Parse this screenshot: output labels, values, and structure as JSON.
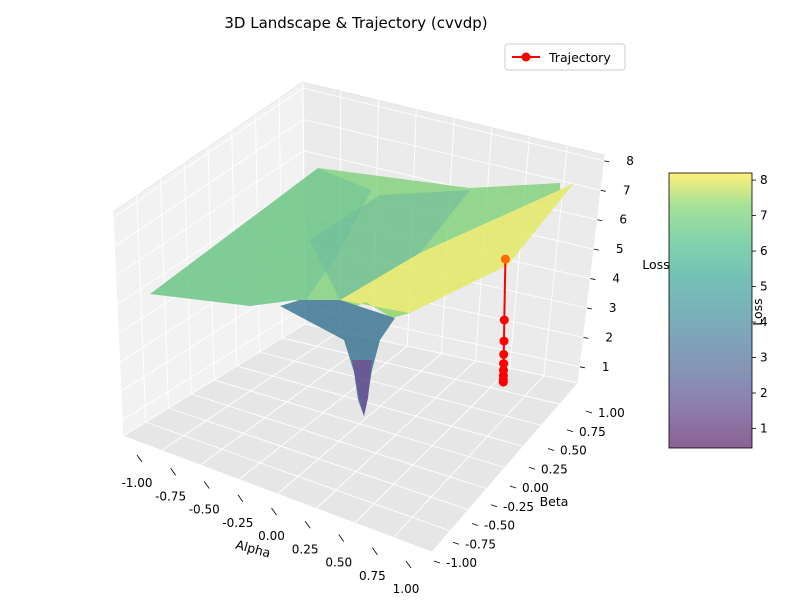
{
  "chart_data": {
    "type": "surface3d",
    "title": "3D Landscape & Trajectory (cvvdp)",
    "xlabel": "Alpha",
    "ylabel": "Beta",
    "zlabel": "Loss",
    "xlim": [
      -1.0,
      1.0
    ],
    "ylim": [
      -1.0,
      1.0
    ],
    "zlim": [
      0.45,
      8.2
    ],
    "x_ticks": [
      "-1.00",
      "-0.75",
      "-0.50",
      "-0.25",
      "0.00",
      "0.25",
      "0.50",
      "0.75",
      "1.00"
    ],
    "y_ticks": [
      "-1.00",
      "-0.75",
      "-0.50",
      "-0.25",
      "0.00",
      "0.25",
      "0.50",
      "0.75",
      "1.00"
    ],
    "z_ticks": [
      "1",
      "2",
      "3",
      "4",
      "5",
      "6",
      "7",
      "8"
    ],
    "colormap": "viridis",
    "grid": true,
    "legend": {
      "placement": "top-right",
      "entries": [
        {
          "label": "Trajectory",
          "color": "#ff0000",
          "marker": "circle"
        }
      ]
    },
    "colorbar": {
      "label": "Loss",
      "ticks": [
        "1",
        "2",
        "3",
        "4",
        "5",
        "6",
        "7",
        "8"
      ],
      "range": [
        0.45,
        8.2
      ]
    },
    "series": [
      {
        "name": "Trajectory",
        "color": "#ff0000",
        "points": [
          {
            "x": 1.0,
            "y": 1.0,
            "z": 5.7
          },
          {
            "x": 1.0,
            "y": 1.0,
            "z": 3.4
          },
          {
            "x": 1.0,
            "y": 1.0,
            "z": 2.6
          },
          {
            "x": 1.0,
            "y": 1.0,
            "z": 2.1
          },
          {
            "x": 1.0,
            "y": 1.0,
            "z": 1.75
          },
          {
            "x": 1.0,
            "y": 1.0,
            "z": 1.5
          },
          {
            "x": 1.0,
            "y": 1.0,
            "z": 1.3
          },
          {
            "x": 1.0,
            "y": 1.0,
            "z": 1.15
          },
          {
            "x": 1.0,
            "y": 1.0,
            "z": 1.05
          }
        ]
      }
    ]
  }
}
